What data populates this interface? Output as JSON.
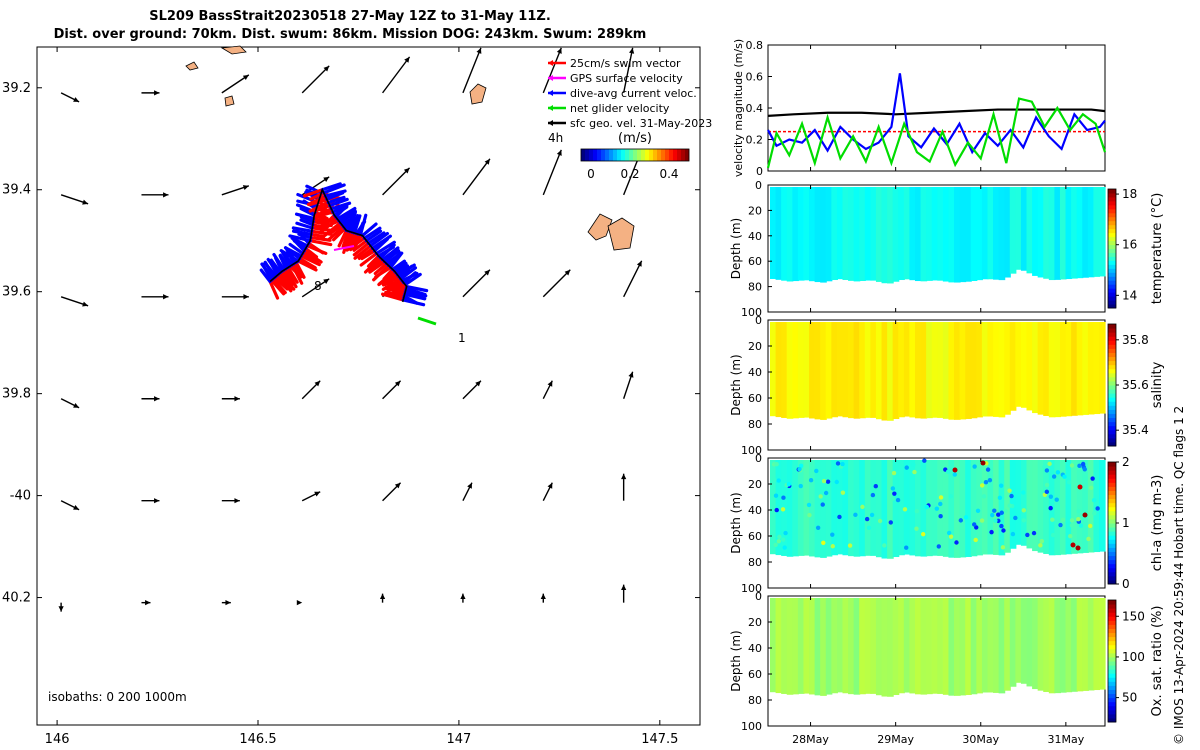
{
  "title": {
    "line1": "SL209 BassStrait20230518 27-May 12Z to 31-May 11Z.",
    "line2": "Dist. over ground: 70km. Dist. swum: 86km. Mission DOG: 243km. Swum: 289km"
  },
  "side_caption": "© IMOS 13-Apr-2024 20:59:44 Hobart time. QC flags 1  2",
  "colors": {
    "swim": "#ff0000",
    "gps": "#ff00ff",
    "current": "#0000ff",
    "net": "#00dd00",
    "geo": "#000000",
    "land": "#f4b183"
  },
  "chart_data": [
    {
      "type": "scatter",
      "title": "map",
      "xlim": [
        145.95,
        147.6
      ],
      "ylim": [
        -40.45,
        -39.12
      ],
      "x_ticks": [
        146,
        146.5,
        147,
        147.5
      ],
      "x_tick_labels": [
        "146",
        "146.5",
        "147",
        "147.5"
      ],
      "y_ticks": [
        -39.2,
        -39.4,
        -39.6,
        -39.8,
        -40,
        -40.2
      ],
      "y_tick_labels": [
        "39.2",
        "39.4",
        "39.6",
        "39.8",
        "-40",
        "40.2"
      ],
      "legend": [
        {
          "label": "25cm/s swim vector",
          "color": "#ff0000"
        },
        {
          "label": "GPS surface velocity",
          "color": "#ff00ff"
        },
        {
          "label": "dive-avg current veloc.",
          "color": "#0000ff"
        },
        {
          "label": "net glider velocity",
          "color": "#00dd00"
        },
        {
          "label": "sfc geo. vel. 31-May-2023",
          "color": "#000000"
        }
      ],
      "legend_note": "4h",
      "colorbar_label": "(m/s)",
      "colorbar_ticks": [
        "0",
        "0.2",
        "0.4"
      ],
      "isobaths_label": "isobaths: 0   200  1000m",
      "annotations": [
        "8",
        "1"
      ],
      "geo_vectors": {
        "lons": [
          146.01,
          146.21,
          146.41,
          146.61,
          146.81,
          147.01,
          147.21,
          147.41
        ],
        "lats": [
          -39.21,
          -39.41,
          -39.61,
          -39.81,
          -40.01,
          -40.21
        ],
        "u": [
          [
            0.02,
            0.02,
            0.03,
            0.03,
            0.03,
            0.02,
            0.02,
            0.01
          ],
          [
            0.03,
            0.03,
            0.03,
            0.03,
            0.03,
            0.03,
            0.02,
            0.02
          ],
          [
            0.03,
            0.03,
            0.03,
            0.03,
            0.03,
            0.03,
            0.03,
            0.02
          ],
          [
            0.02,
            0.02,
            0.02,
            0.02,
            0.02,
            0.02,
            0.01,
            0.01
          ],
          [
            0.02,
            0.02,
            0.02,
            0.02,
            0.02,
            0.01,
            0.01,
            0.0
          ],
          [
            0.0,
            0.01,
            0.01,
            0.0,
            0.0,
            0.0,
            0.0,
            0.0
          ]
        ],
        "v": [
          [
            -0.01,
            0.0,
            0.02,
            0.03,
            0.04,
            0.05,
            0.05,
            0.05
          ],
          [
            -0.01,
            0.0,
            0.01,
            0.02,
            0.03,
            0.04,
            0.05,
            0.05
          ],
          [
            -0.01,
            0.0,
            0.0,
            0.02,
            0.03,
            0.03,
            0.03,
            0.04
          ],
          [
            -0.01,
            0.0,
            0.0,
            0.02,
            0.02,
            0.02,
            0.02,
            0.03
          ],
          [
            -0.01,
            0.0,
            0.0,
            0.01,
            0.02,
            0.02,
            0.02,
            0.03
          ],
          [
            -0.01,
            0.0,
            0.0,
            0.0,
            0.01,
            0.01,
            0.01,
            0.02
          ]
        ]
      },
      "glider_track": {
        "lon": [
          146.53,
          146.56,
          146.6,
          146.63,
          146.64,
          146.66,
          146.69,
          146.72,
          146.76,
          146.8,
          146.84,
          146.87,
          146.86
        ],
        "lat": [
          -39.58,
          -39.56,
          -39.54,
          -39.5,
          -39.45,
          -39.4,
          -39.45,
          -39.48,
          -39.49,
          -39.53,
          -39.56,
          -39.59,
          -39.62
        ]
      }
    },
    {
      "type": "line",
      "title": "velocity magnitude",
      "ylabel": "velocity magnitude (m/s)",
      "ylim": [
        0,
        0.8
      ],
      "y_ticks": [
        0,
        0.2,
        0.4,
        0.6,
        0.8
      ],
      "y_tick_labels": [
        "0",
        "0.2",
        "0.4",
        "0.6",
        "0.8"
      ],
      "xlim": [
        27.5,
        31.46
      ],
      "series": [
        {
          "name": "sfc geo. vel.",
          "color": "#000000",
          "x": [
            27.5,
            27.8,
            28.2,
            28.6,
            29.0,
            29.4,
            29.8,
            30.2,
            30.6,
            31.0,
            31.3,
            31.46
          ],
          "values": [
            0.35,
            0.36,
            0.37,
            0.37,
            0.36,
            0.37,
            0.38,
            0.39,
            0.39,
            0.39,
            0.39,
            0.38
          ]
        },
        {
          "name": "swim vector",
          "color": "#ff0000",
          "x": [
            27.5,
            31.46
          ],
          "values": [
            0.25,
            0.25
          ]
        },
        {
          "name": "dive-avg current",
          "color": "#0000ff",
          "x": [
            27.5,
            27.6,
            27.75,
            27.9,
            28.05,
            28.2,
            28.35,
            28.5,
            28.65,
            28.8,
            28.95,
            29.05,
            29.15,
            29.3,
            29.45,
            29.6,
            29.75,
            29.9,
            30.05,
            30.2,
            30.35,
            30.5,
            30.65,
            30.8,
            30.95,
            31.1,
            31.25,
            31.4,
            31.46
          ],
          "values": [
            0.26,
            0.16,
            0.2,
            0.18,
            0.26,
            0.13,
            0.28,
            0.2,
            0.14,
            0.18,
            0.28,
            0.62,
            0.22,
            0.15,
            0.27,
            0.17,
            0.3,
            0.12,
            0.24,
            0.16,
            0.26,
            0.15,
            0.34,
            0.22,
            0.14,
            0.36,
            0.26,
            0.28,
            0.32
          ]
        },
        {
          "name": "net glider velocity",
          "color": "#00dd00",
          "x": [
            27.5,
            27.6,
            27.75,
            27.9,
            28.05,
            28.2,
            28.35,
            28.5,
            28.65,
            28.8,
            28.95,
            29.1,
            29.25,
            29.4,
            29.55,
            29.7,
            29.85,
            30.0,
            30.15,
            30.3,
            30.45,
            30.6,
            30.75,
            30.9,
            31.05,
            31.2,
            31.35,
            31.46
          ],
          "values": [
            0.02,
            0.24,
            0.1,
            0.3,
            0.05,
            0.34,
            0.08,
            0.22,
            0.06,
            0.28,
            0.05,
            0.3,
            0.12,
            0.06,
            0.25,
            0.04,
            0.18,
            0.08,
            0.36,
            0.05,
            0.46,
            0.44,
            0.28,
            0.4,
            0.26,
            0.36,
            0.3,
            0.12
          ]
        }
      ]
    },
    {
      "type": "heatmap",
      "title": "temperature",
      "ylabel": "Depth (m)",
      "colorbar_label": "temperature (°C)",
      "clim": [
        13.5,
        18.2
      ],
      "colorbar_ticks": [
        14,
        16,
        18
      ],
      "colorbar_tick_labels": [
        "14",
        "16",
        "18"
      ],
      "ylim": [
        0,
        100
      ],
      "y_ticks": [
        0,
        20,
        40,
        60,
        80,
        100
      ],
      "y_tick_labels": [
        "0",
        "20",
        "40",
        "60",
        "80",
        "100"
      ],
      "typical_value": 15.3,
      "max_depth_profile": [
        74,
        76,
        75,
        77,
        74,
        76,
        75,
        78,
        74,
        76,
        75,
        77,
        76,
        74,
        75,
        66,
        72,
        75,
        74,
        73,
        72
      ]
    },
    {
      "type": "heatmap",
      "title": "salinity",
      "ylabel": "Depth (m)",
      "colorbar_label": "salinity",
      "clim": [
        35.33,
        35.87
      ],
      "colorbar_ticks": [
        35.4,
        35.6,
        35.8
      ],
      "colorbar_tick_labels": [
        "35.4",
        "35.6",
        "35.8"
      ],
      "ylim": [
        0,
        100
      ],
      "y_ticks": [
        0,
        20,
        40,
        60,
        80,
        100
      ],
      "y_tick_labels": [
        "0",
        "20",
        "40",
        "60",
        "80",
        "100"
      ],
      "typical_value": 35.67,
      "max_depth_profile": [
        74,
        76,
        75,
        77,
        74,
        76,
        75,
        78,
        74,
        76,
        75,
        77,
        76,
        74,
        75,
        66,
        72,
        75,
        74,
        73,
        72
      ]
    },
    {
      "type": "heatmap",
      "title": "chl-a",
      "ylabel": "Depth (m)",
      "colorbar_label": "chl-a (mg m-3)",
      "clim": [
        0,
        2
      ],
      "colorbar_ticks": [
        0,
        1,
        2
      ],
      "colorbar_tick_labels": [
        "0",
        "1",
        "2"
      ],
      "ylim": [
        0,
        100
      ],
      "y_ticks": [
        0,
        20,
        40,
        60,
        80,
        100
      ],
      "y_tick_labels": [
        "0",
        "20",
        "40",
        "60",
        "80",
        "100"
      ],
      "typical_value": 0.85,
      "max_depth_profile": [
        74,
        76,
        75,
        77,
        74,
        76,
        75,
        78,
        74,
        76,
        75,
        77,
        76,
        74,
        75,
        66,
        72,
        75,
        74,
        73,
        72
      ]
    },
    {
      "type": "heatmap",
      "title": "oxygen",
      "ylabel": "Depth (m)",
      "colorbar_label": "Ox. sat. ratio (%)",
      "clim": [
        20,
        170
      ],
      "colorbar_ticks": [
        50,
        100,
        150
      ],
      "colorbar_tick_labels": [
        "50",
        "100",
        "150"
      ],
      "ylim": [
        0,
        100
      ],
      "y_ticks": [
        0,
        20,
        40,
        60,
        80,
        100
      ],
      "y_tick_labels": [
        "0",
        "20",
        "40",
        "60",
        "80",
        "100"
      ],
      "x_tick_labels": [
        "28May",
        "29May",
        "30May",
        "31May"
      ],
      "x_ticks": [
        28,
        29,
        30,
        31
      ],
      "typical_value": 100,
      "max_depth_profile": [
        74,
        76,
        75,
        77,
        74,
        76,
        75,
        78,
        74,
        76,
        75,
        77,
        76,
        74,
        75,
        66,
        72,
        75,
        74,
        73,
        72
      ]
    }
  ]
}
